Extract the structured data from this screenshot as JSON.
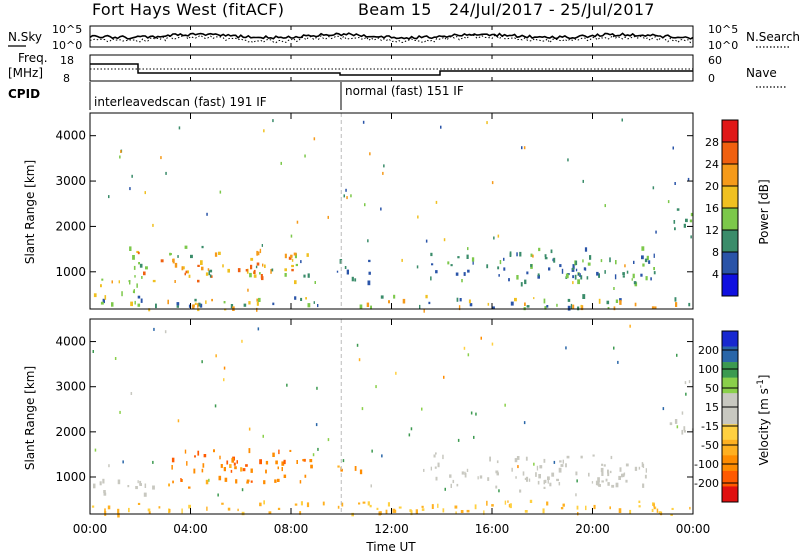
{
  "header": {
    "station": "Fort Hays West (fitACF)",
    "beam": "Beam 15",
    "dates": "24/Jul/2017 - 25/Jul/2017"
  },
  "panels": {
    "nsky_label": "N.Sky",
    "nsky_ticks": [
      "10^5",
      "10^0"
    ],
    "nsearch_label": "N.Search",
    "nsearch_ticks": [
      "10^5",
      "10^0"
    ],
    "freq_label": "Freq.",
    "freq_unit": "[MHz]",
    "freq_ticks": [
      "18",
      "8"
    ],
    "nave_label": "Nave",
    "nave_ticks": [
      "60",
      "0"
    ],
    "cpid_label": "CPID",
    "cpid_segments": [
      "interleavedscan (fast) 191 IF",
      "normal (fast) 151 IF"
    ]
  },
  "colors": {
    "power_scale": [
      "#1010e0",
      "#2a54a8",
      "#3a8c6a",
      "#7cc84a",
      "#f0c020",
      "#f59a1a",
      "#f06010",
      "#e01818"
    ],
    "velocity_scale": [
      "#e01010",
      "#ff5a00",
      "#ff8c00",
      "#ffb020",
      "#ffd040",
      "#c8c8c0",
      "#c8c8c0",
      "#8ad04a",
      "#3c9a50",
      "#2a66a8",
      "#1828d0"
    ],
    "ground_scatter": "#aaaaaa"
  },
  "chart_data": [
    {
      "type": "heatmap",
      "name": "power",
      "ylabel": "Slant Range [km]",
      "ylim": [
        180,
        4500
      ],
      "y_ticks": [
        1000,
        2000,
        3000,
        4000
      ],
      "colorbar_label": "Power [dB]",
      "colorbar_ticks": [
        4,
        8,
        12,
        16,
        20,
        24,
        28
      ],
      "colorbar_range": [
        0,
        32
      ],
      "regions": [
        {
          "t0": 1.5,
          "t1": 8.8,
          "r0": 700,
          "r1": 1650,
          "v0": 10,
          "v1": 28
        },
        {
          "t0": 0.0,
          "t1": 2.0,
          "r0": 500,
          "r1": 1000,
          "v0": 12,
          "v1": 20
        },
        {
          "t0": 9.8,
          "t1": 11.2,
          "r0": 750,
          "r1": 1350,
          "v0": 4,
          "v1": 12
        },
        {
          "t0": 13.5,
          "t1": 22.5,
          "r0": 700,
          "r1": 1600,
          "v0": 4,
          "v1": 14
        },
        {
          "t0": 23.0,
          "t1": 24.0,
          "r0": 1900,
          "r1": 2500,
          "v0": 8,
          "v1": 16
        },
        {
          "t0": 0.0,
          "t1": 24.0,
          "r0": 180,
          "r1": 520,
          "v0": 4,
          "v1": 24
        }
      ]
    },
    {
      "type": "heatmap",
      "name": "velocity",
      "ylabel": "Slant Range [km]",
      "xlabel": "Time UT",
      "x_ticks": [
        "00:00",
        "04:00",
        "08:00",
        "12:00",
        "16:00",
        "20:00",
        "00:00"
      ],
      "ylim": [
        180,
        4500
      ],
      "y_ticks": [
        1000,
        2000,
        3000,
        4000
      ],
      "colorbar_label": "Velocity [m s^-1]",
      "colorbar_ticks": [
        200,
        100,
        50,
        15,
        -15,
        -50,
        -100,
        -200
      ],
      "regions": [
        {
          "t0": 3.0,
          "t1": 8.8,
          "r0": 700,
          "r1": 1650,
          "v0": -120,
          "v1": -40
        },
        {
          "t0": 0.0,
          "t1": 2.5,
          "r0": 500,
          "r1": 1000,
          "v0": -10,
          "v1": 10
        },
        {
          "t0": 9.8,
          "t1": 11.2,
          "r0": 1100,
          "r1": 1400,
          "v0": -80,
          "v1": -30
        },
        {
          "t0": 13.5,
          "t1": 22.5,
          "r0": 700,
          "r1": 1600,
          "v0": -12,
          "v1": 12
        },
        {
          "t0": 23.0,
          "t1": 24.0,
          "r0": 1900,
          "r1": 2500,
          "v0": -10,
          "v1": 10
        },
        {
          "t0": 0.0,
          "t1": 24.0,
          "r0": 180,
          "r1": 520,
          "v0": -50,
          "v1": -15
        }
      ]
    }
  ]
}
